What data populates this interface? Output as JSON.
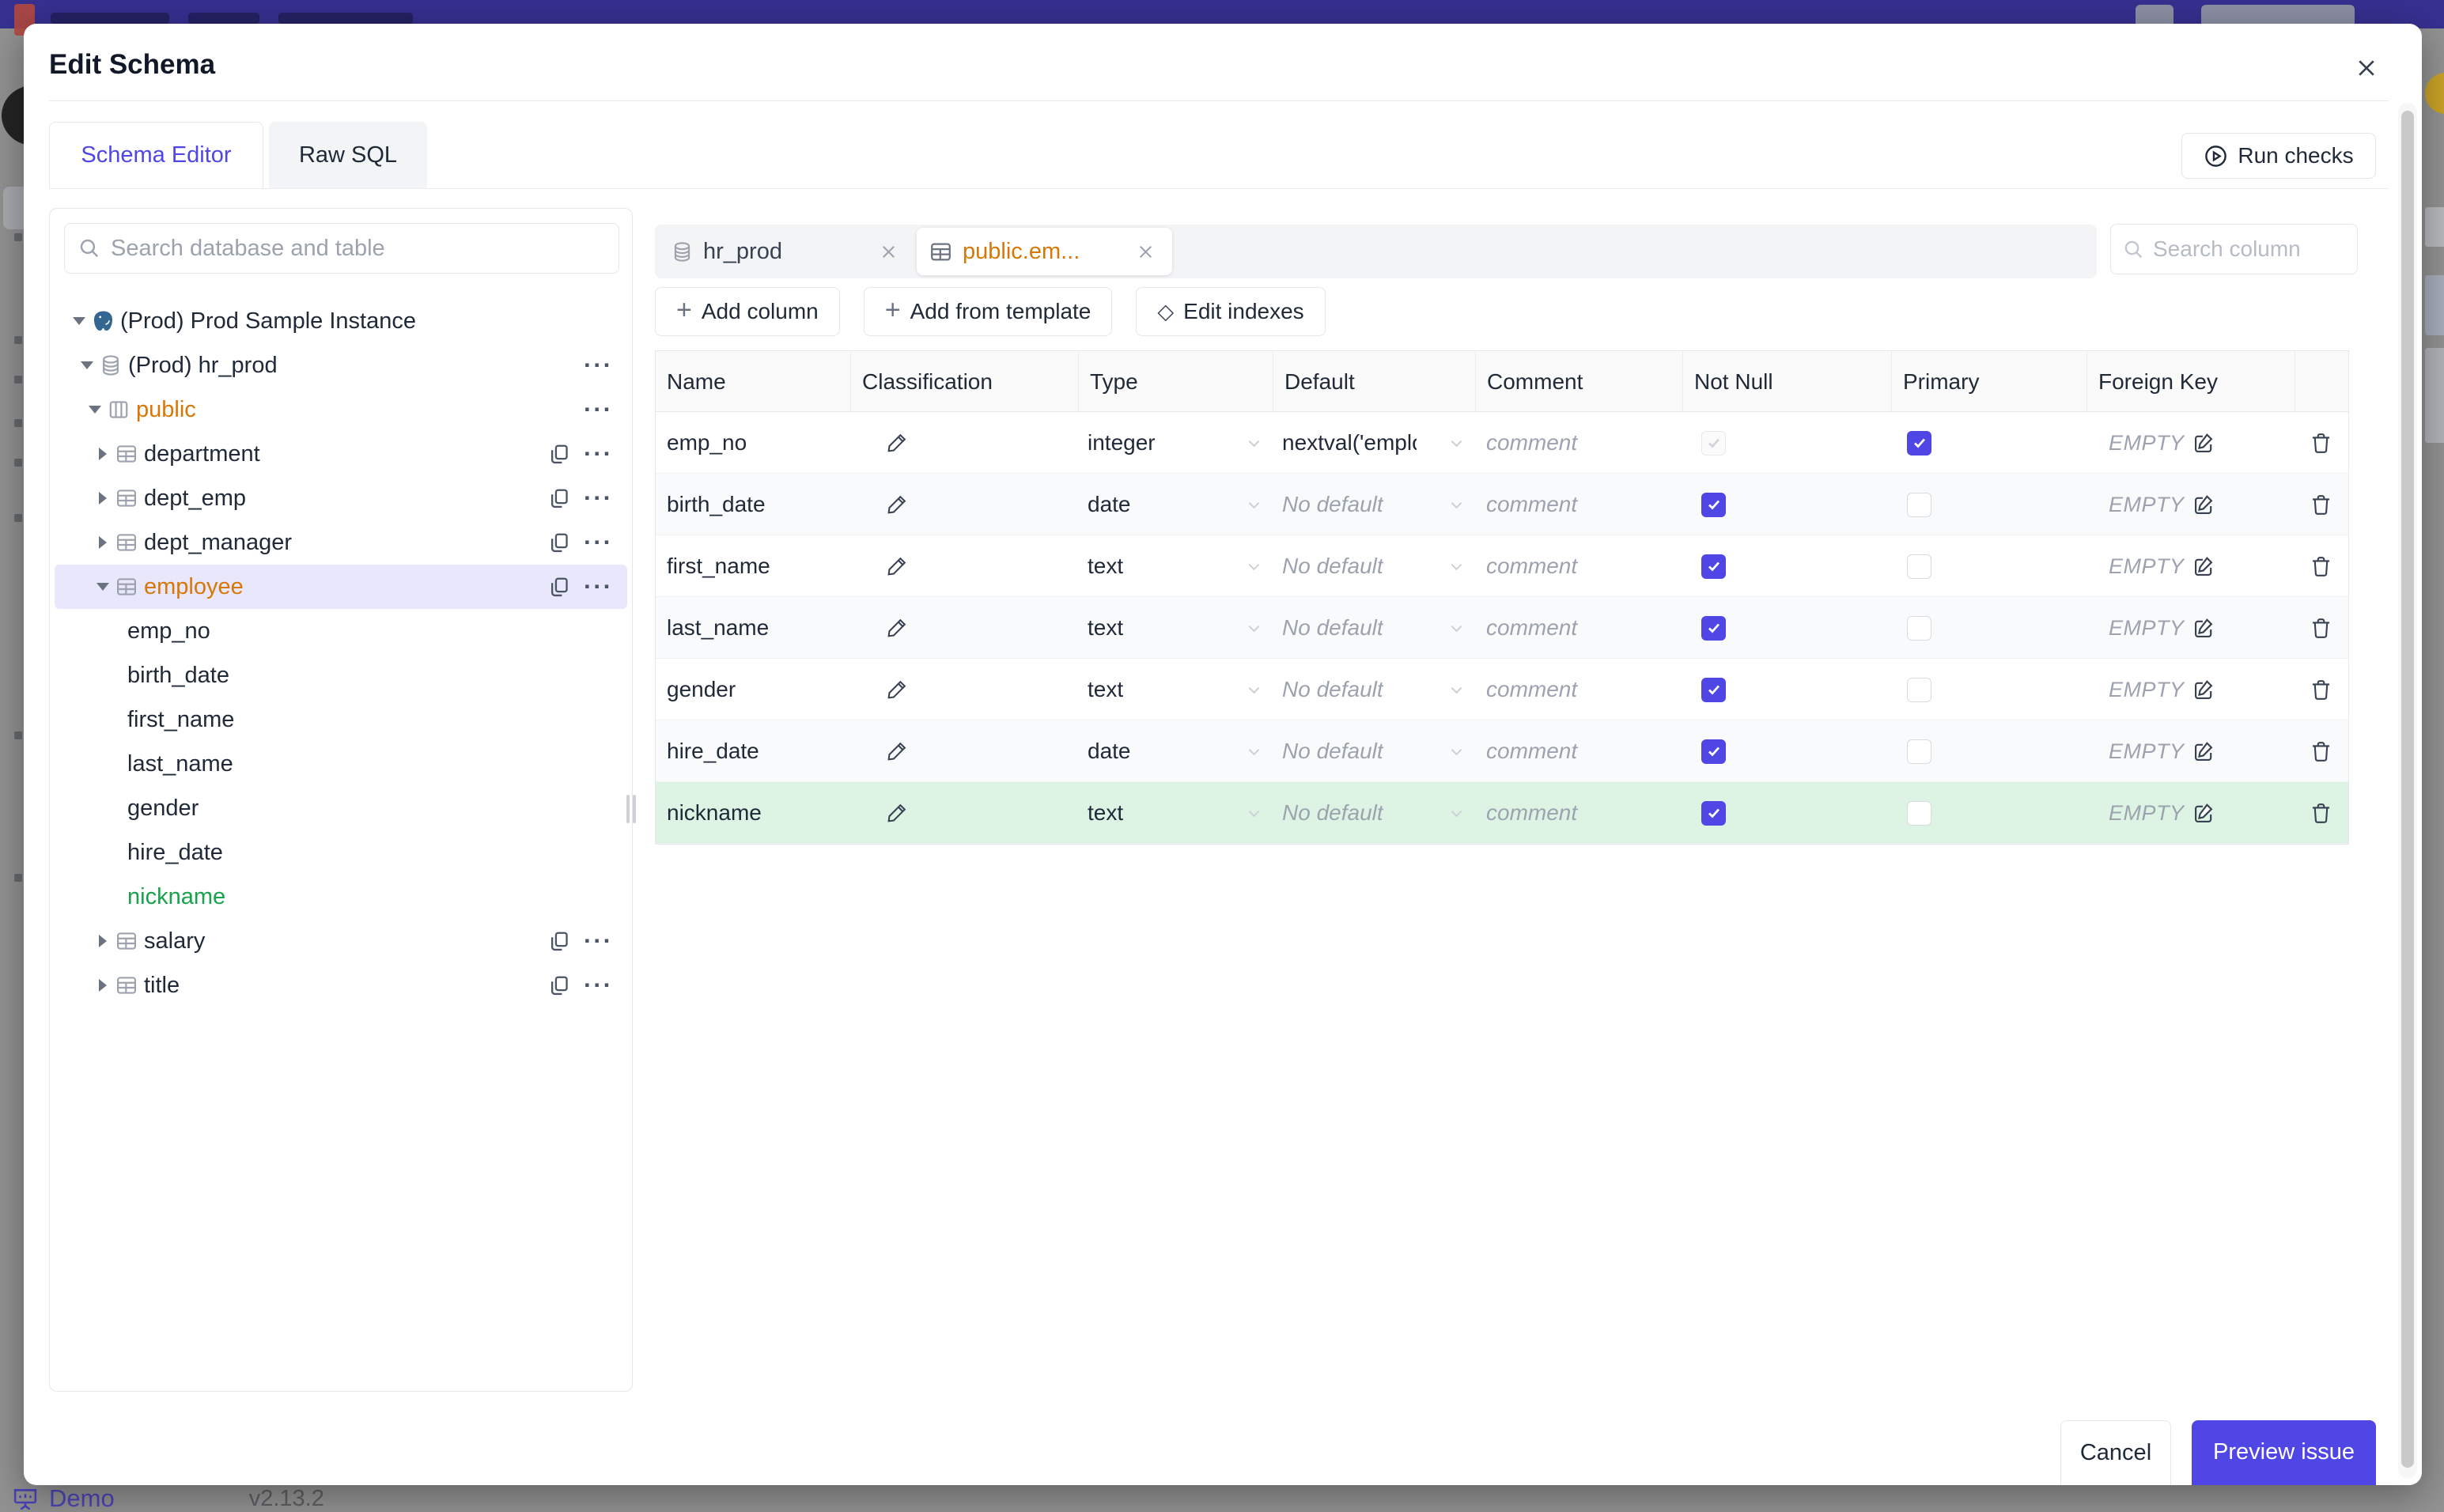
{
  "colors": {
    "accent": "#4f46e5",
    "orange": "#d97706",
    "green": "#16a34a",
    "new_row_bg": "#ddf4e4",
    "selection_bg": "#e9e7fb",
    "topbar": "#363090"
  },
  "backdrop": {
    "status_bar": {
      "demo_label": "Demo",
      "version": "v2.13.2"
    }
  },
  "modal": {
    "title": "Edit Schema",
    "tabs": [
      {
        "label": "Schema Editor",
        "active": true
      },
      {
        "label": "Raw SQL",
        "active": false
      }
    ],
    "run_checks": {
      "label": "Run checks",
      "icon": "play-circle-icon"
    }
  },
  "sidebar": {
    "search": {
      "placeholder": "Search database and table",
      "icon": "search-icon"
    },
    "tree": [
      {
        "label": "(Prod) Prod Sample Instance",
        "level": 0,
        "icon": "postgres-icon",
        "caret": "down",
        "color": "default",
        "selected": false,
        "actions": []
      },
      {
        "label": "(Prod) hr_prod",
        "level": 1,
        "icon": "database-icon",
        "caret": "down",
        "color": "default",
        "selected": false,
        "actions": [
          "more"
        ]
      },
      {
        "label": "public",
        "level": 2,
        "icon": "schema-icon",
        "caret": "down",
        "color": "orange",
        "selected": false,
        "actions": [
          "more"
        ]
      },
      {
        "label": "department",
        "level": 3,
        "icon": "table-icon",
        "caret": "right",
        "color": "default",
        "selected": false,
        "actions": [
          "copy",
          "more"
        ]
      },
      {
        "label": "dept_emp",
        "level": 3,
        "icon": "table-icon",
        "caret": "right",
        "color": "default",
        "selected": false,
        "actions": [
          "copy",
          "more"
        ]
      },
      {
        "label": "dept_manager",
        "level": 3,
        "icon": "table-icon",
        "caret": "right",
        "color": "default",
        "selected": false,
        "actions": [
          "copy",
          "more"
        ]
      },
      {
        "label": "employee",
        "level": 3,
        "icon": "table-icon",
        "caret": "down",
        "color": "orange",
        "selected": true,
        "actions": [
          "copy",
          "more"
        ]
      },
      {
        "label": "emp_no",
        "level": 4,
        "icon": null,
        "caret": "none",
        "color": "default",
        "selected": false,
        "actions": []
      },
      {
        "label": "birth_date",
        "level": 4,
        "icon": null,
        "caret": "none",
        "color": "default",
        "selected": false,
        "actions": []
      },
      {
        "label": "first_name",
        "level": 4,
        "icon": null,
        "caret": "none",
        "color": "default",
        "selected": false,
        "actions": []
      },
      {
        "label": "last_name",
        "level": 4,
        "icon": null,
        "caret": "none",
        "color": "default",
        "selected": false,
        "actions": []
      },
      {
        "label": "gender",
        "level": 4,
        "icon": null,
        "caret": "none",
        "color": "default",
        "selected": false,
        "actions": []
      },
      {
        "label": "hire_date",
        "level": 4,
        "icon": null,
        "caret": "none",
        "color": "default",
        "selected": false,
        "actions": []
      },
      {
        "label": "nickname",
        "level": 4,
        "icon": null,
        "caret": "none",
        "color": "green",
        "selected": false,
        "actions": []
      },
      {
        "label": "salary",
        "level": 3,
        "icon": "table-icon",
        "caret": "right",
        "color": "default",
        "selected": false,
        "actions": [
          "copy",
          "more"
        ]
      },
      {
        "label": "title",
        "level": 3,
        "icon": "table-icon",
        "caret": "right",
        "color": "default",
        "selected": false,
        "actions": [
          "copy",
          "more"
        ]
      }
    ]
  },
  "editor": {
    "open_tabs": [
      {
        "label": "hr_prod",
        "icon": "database-icon",
        "active": false
      },
      {
        "label": "public.em...",
        "icon": "table-icon",
        "active": true
      }
    ],
    "toolbar": [
      {
        "label": "Add column",
        "icon": "plus-icon"
      },
      {
        "label": "Add from template",
        "icon": "plus-icon"
      },
      {
        "label": "Edit indexes",
        "icon": "diamond-icon"
      }
    ],
    "column_search": {
      "placeholder": "Search column",
      "icon": "search-icon"
    },
    "table": {
      "headers": [
        "Name",
        "Classification",
        "Type",
        "Default",
        "Comment",
        "Not Null",
        "Primary",
        "Foreign Key"
      ],
      "comment_placeholder": "comment",
      "foreign_key_empty": "EMPTY",
      "rows": [
        {
          "name": "emp_no",
          "type": "integer",
          "default_value": "nextval('employ",
          "default_is_placeholder": false,
          "not_null_checked": true,
          "not_null_disabled": true,
          "primary_checked": true,
          "foreign_key": "EMPTY",
          "is_new": false
        },
        {
          "name": "birth_date",
          "type": "date",
          "default_value": "No default",
          "default_is_placeholder": true,
          "not_null_checked": true,
          "not_null_disabled": false,
          "primary_checked": false,
          "foreign_key": "EMPTY",
          "is_new": false
        },
        {
          "name": "first_name",
          "type": "text",
          "default_value": "No default",
          "default_is_placeholder": true,
          "not_null_checked": true,
          "not_null_disabled": false,
          "primary_checked": false,
          "foreign_key": "EMPTY",
          "is_new": false
        },
        {
          "name": "last_name",
          "type": "text",
          "default_value": "No default",
          "default_is_placeholder": true,
          "not_null_checked": true,
          "not_null_disabled": false,
          "primary_checked": false,
          "foreign_key": "EMPTY",
          "is_new": false
        },
        {
          "name": "gender",
          "type": "text",
          "default_value": "No default",
          "default_is_placeholder": true,
          "not_null_checked": true,
          "not_null_disabled": false,
          "primary_checked": false,
          "foreign_key": "EMPTY",
          "is_new": false
        },
        {
          "name": "hire_date",
          "type": "date",
          "default_value": "No default",
          "default_is_placeholder": true,
          "not_null_checked": true,
          "not_null_disabled": false,
          "primary_checked": false,
          "foreign_key": "EMPTY",
          "is_new": false
        },
        {
          "name": "nickname",
          "type": "text",
          "default_value": "No default",
          "default_is_placeholder": true,
          "not_null_checked": true,
          "not_null_disabled": false,
          "primary_checked": false,
          "foreign_key": "EMPTY",
          "is_new": true
        }
      ]
    }
  },
  "footer": {
    "cancel_label": "Cancel",
    "primary_label": "Preview issue"
  }
}
